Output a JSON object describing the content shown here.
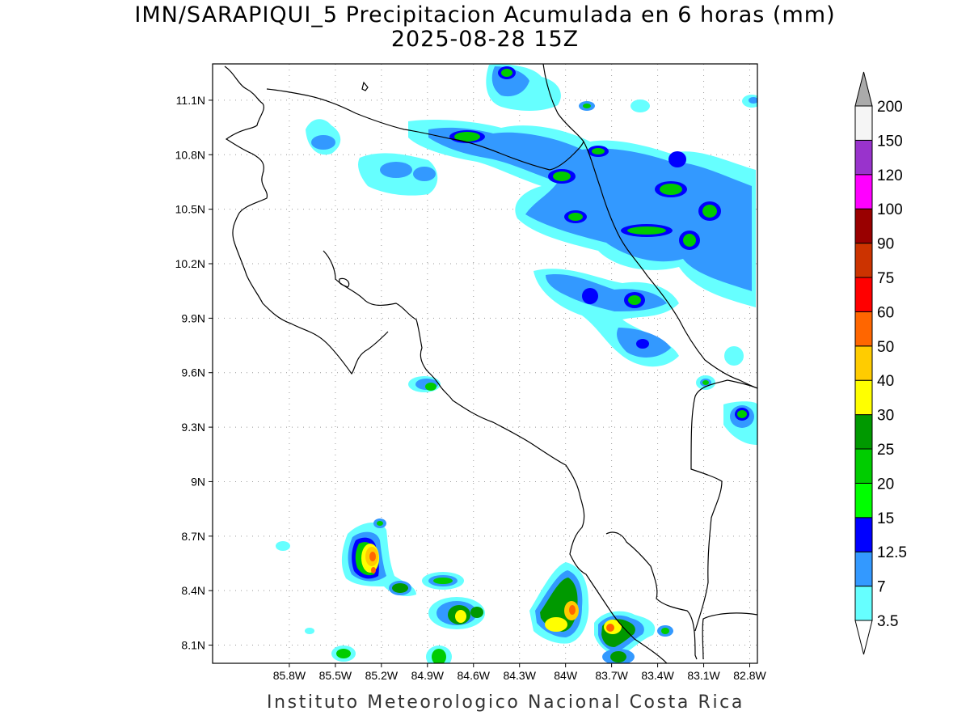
{
  "title": {
    "line1": "IMN/SARAPIQUI_5 Precipitacion Acumulada en 6 horas (mm)",
    "line2": "2025-08-28 15Z"
  },
  "footer": "Instituto Meteorologico Nacional Costa Rica",
  "map": {
    "lon_range": [
      -86.3,
      -82.75
    ],
    "lat_range": [
      8.0,
      11.3
    ],
    "lat_ticks": [
      "11.1N",
      "10.8N",
      "10.5N",
      "10.2N",
      "9.9N",
      "9.6N",
      "9.3N",
      "9N",
      "8.7N",
      "8.4N",
      "8.1N"
    ],
    "lon_ticks": [
      "85.8W",
      "85.5W",
      "85.2W",
      "84.9W",
      "84.6W",
      "84.3W",
      "84W",
      "83.7W",
      "83.4W",
      "83.1W",
      "82.8W"
    ],
    "grid": true
  },
  "legend": {
    "levels": [
      "3.5",
      "7",
      "12.5",
      "15",
      "20",
      "25",
      "30",
      "40",
      "50",
      "60",
      "75",
      "90",
      "100",
      "120",
      "150",
      "200"
    ],
    "colors": [
      "#66ffff",
      "#3399ff",
      "#0000ff",
      "#00ff00",
      "#00cc00",
      "#009900",
      "#ffff00",
      "#ffcc00",
      "#ff6600",
      "#ff0000",
      "#cc3300",
      "#990000",
      "#ff00ff",
      "#9933cc",
      "#f5f5f5",
      "#aaaaaa"
    ]
  }
}
